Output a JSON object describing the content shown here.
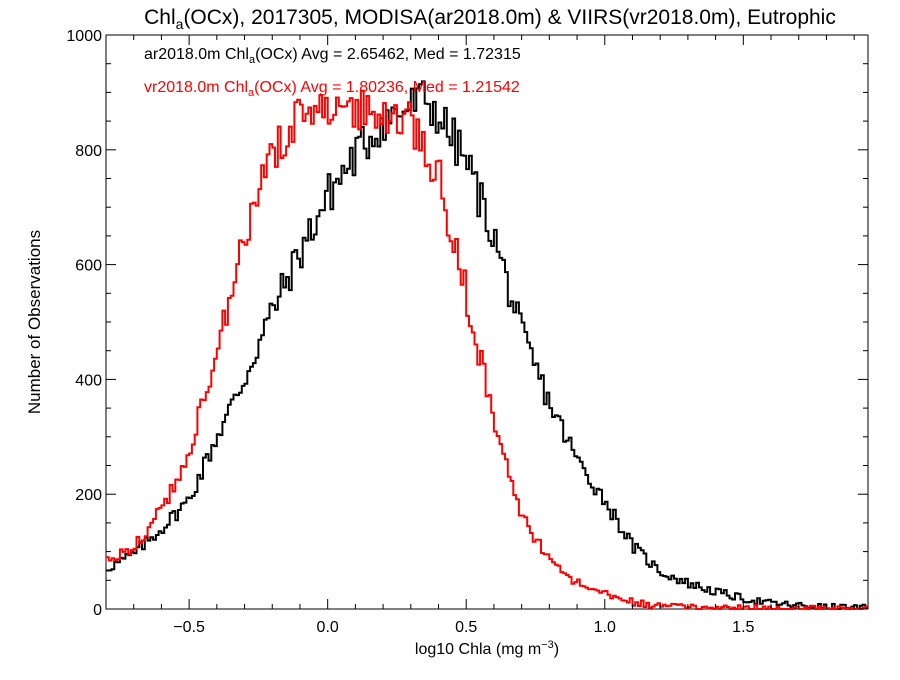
{
  "chart_data": {
    "type": "histogram",
    "title_parts": {
      "pre": "Chl",
      "sub": "a",
      "post": "(OCx), 2017305, MODISA(ar2018.0m) & VIIRS(vr2018.0m), Eutrophic"
    },
    "xlabel_parts": {
      "pre": "log10 Chla (mg m",
      "sup": "−3",
      "post": ")"
    },
    "ylabel": "Number of Observations",
    "xlim": [
      -0.8,
      1.95
    ],
    "ylim": [
      0,
      1000
    ],
    "x_ticks": [
      -0.5,
      0.0,
      0.5,
      1.0,
      1.5
    ],
    "x_tick_labels": [
      "−0.5",
      "0.0",
      "0.5",
      "1.0",
      "1.5"
    ],
    "y_ticks": [
      0,
      200,
      400,
      600,
      800,
      1000
    ],
    "y_tick_labels": [
      "0",
      "200",
      "400",
      "600",
      "800",
      "1000"
    ],
    "grid": false,
    "legend_position": "top-left",
    "series": [
      {
        "name": "ar2018.0m",
        "color": "#000000",
        "label_parts": {
          "pre": "ar2018.0m Chl",
          "sub": "a",
          "post": "(OCx) Avg = 2.65462, Med = 1.72315"
        },
        "x": [
          -0.8,
          -0.7,
          -0.6,
          -0.5,
          -0.4,
          -0.3,
          -0.2,
          -0.1,
          0.0,
          0.1,
          0.2,
          0.3,
          0.35,
          0.4,
          0.5,
          0.6,
          0.7,
          0.8,
          0.9,
          1.0,
          1.1,
          1.2,
          1.3,
          1.4,
          1.5,
          1.6,
          1.7,
          1.8,
          1.9,
          1.95
        ],
        "y": [
          70,
          95,
          140,
          190,
          300,
          400,
          520,
          620,
          720,
          790,
          850,
          875,
          890,
          860,
          780,
          650,
          480,
          360,
          260,
          190,
          110,
          65,
          45,
          30,
          18,
          10,
          6,
          3,
          2,
          1
        ]
      },
      {
        "name": "vr2018.0m",
        "color": "#ff0000",
        "label_parts": {
          "pre": "vr2018.0m Chl",
          "sub": "a",
          "post": "(OCx) Avg = 1.80236, Med = 1.21542"
        },
        "x": [
          -0.8,
          -0.7,
          -0.6,
          -0.5,
          -0.4,
          -0.3,
          -0.2,
          -0.1,
          0.0,
          0.1,
          0.2,
          0.3,
          0.4,
          0.5,
          0.6,
          0.7,
          0.8,
          0.9,
          1.0,
          1.1,
          1.2,
          1.3,
          1.4,
          1.5,
          1.6,
          1.7,
          1.8,
          1.9,
          1.95
        ],
        "y": [
          80,
          110,
          170,
          270,
          450,
          640,
          790,
          860,
          880,
          870,
          860,
          850,
          760,
          550,
          330,
          160,
          85,
          45,
          25,
          12,
          6,
          3,
          2,
          1,
          1,
          0,
          0,
          0,
          0
        ]
      }
    ]
  }
}
